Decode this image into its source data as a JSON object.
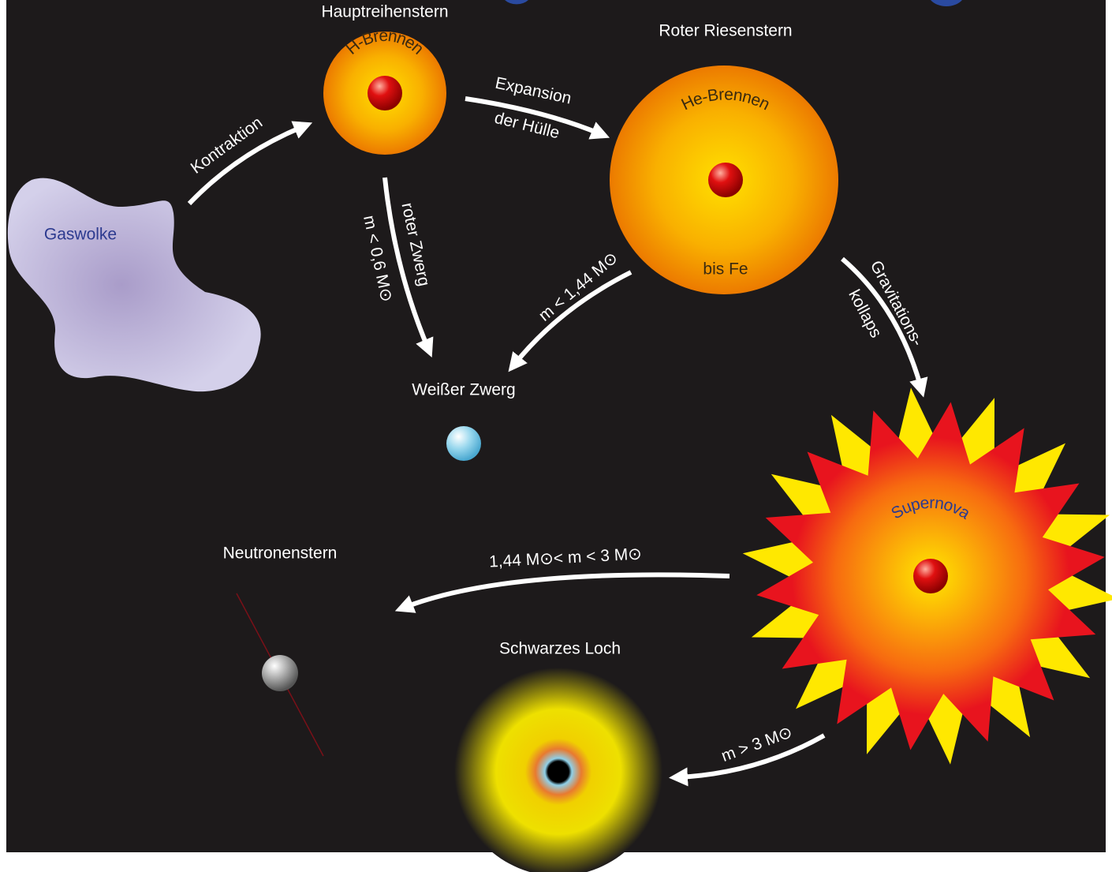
{
  "diagram": {
    "main_sequence": {
      "title": "Hauptreihenstern",
      "core": "H-Brennen"
    },
    "red_giant": {
      "title": "Roter Riesenstern",
      "core": "He-Brennen",
      "shell": "bis Fe"
    },
    "gas_cloud": "Gaswolke",
    "contraction": "Kontraktion",
    "expansion": [
      "Expansion",
      "der Hülle"
    ],
    "red_dwarf": [
      "roter Zwerg",
      "m < 0,6 M⊙"
    ],
    "to_white_dwarf": "m < 1,44 M⊙",
    "white_dwarf": "Weißer Zwerg",
    "collapse": [
      "Gravitations-",
      "kollaps"
    ],
    "supernova": "Supernova",
    "to_neutron_star": "1,44 M⊙< m < 3 M⊙",
    "neutron_star": "Neutronenstern",
    "black_hole": "Schwarzes Loch",
    "to_black_hole": "m > 3 M⊙"
  }
}
